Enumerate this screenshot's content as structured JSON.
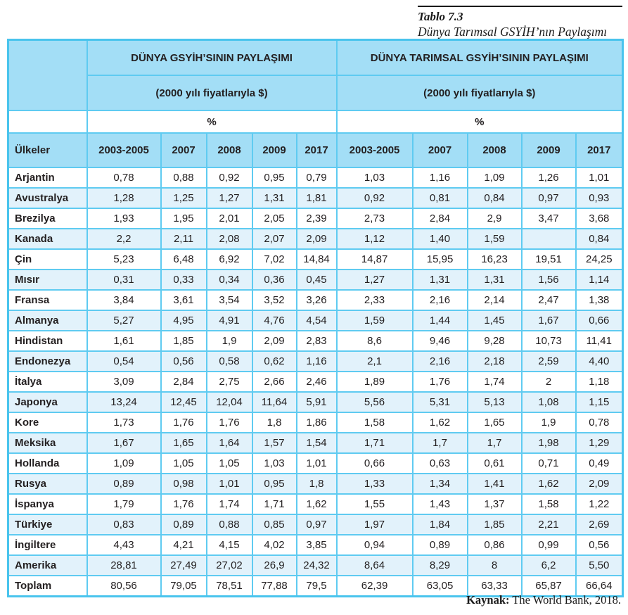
{
  "page": {
    "title": "Tablo 7.3",
    "subtitle": "Dünya Tarımsal GSYİH’nın Paylaşımı",
    "source_label": "Kaynak:",
    "source_text": " The World Bank, 2018."
  },
  "colors": {
    "header_bg": "#A3DEF6",
    "stripe_bg": "#E2F2FB",
    "grid_line": "#5FCBF1",
    "outer_border": "#49C4ED",
    "text": "#231F20"
  },
  "table": {
    "group_left": {
      "title": "DÜNYA GSYİH’SININ PAYLAŞIMI",
      "pricing_note": "(2000 yılı fiyatlarıyla $)",
      "unit": "%"
    },
    "group_right": {
      "title": "DÜNYA TARIMSAL GSYİH’SININ PAYLAŞIMI",
      "pricing_note": "(2000 yılı fiyatlarıyla $)",
      "unit": "%"
    },
    "countries_header": "Ülkeler",
    "years": [
      "2003-2005",
      "2007",
      "2008",
      "2009",
      "2017"
    ],
    "rows": [
      {
        "country": "Arjantin",
        "gdp": [
          "0,78",
          "0,88",
          "0,92",
          "0,95",
          "0,79"
        ],
        "agri": [
          "1,03",
          "1,16",
          "1,09",
          "1,26",
          "1,01"
        ]
      },
      {
        "country": "Avustralya",
        "gdp": [
          "1,28",
          "1,25",
          "1,27",
          "1,31",
          "1,81"
        ],
        "agri": [
          "0,92",
          "0,81",
          "0,84",
          "0,97",
          "0,93"
        ]
      },
      {
        "country": "Brezilya",
        "gdp": [
          "1,93",
          "1,95",
          "2,01",
          "2,05",
          "2,39"
        ],
        "agri": [
          "2,73",
          "2,84",
          "2,9",
          "3,47",
          "3,68"
        ]
      },
      {
        "country": "Kanada",
        "gdp": [
          "2,2",
          "2,11",
          "2,08",
          "2,07",
          "2,09"
        ],
        "agri": [
          "1,12",
          "1,40",
          "1,59",
          "",
          "0,84"
        ]
      },
      {
        "country": "Çin",
        "gdp": [
          "5,23",
          "6,48",
          "6,92",
          "7,02",
          "14,84"
        ],
        "agri": [
          "14,87",
          "15,95",
          "16,23",
          "19,51",
          "24,25"
        ]
      },
      {
        "country": "Mısır",
        "gdp": [
          "0,31",
          "0,33",
          "0,34",
          "0,36",
          "0,45"
        ],
        "agri": [
          "1,27",
          "1,31",
          "1,31",
          "1,56",
          "1,14"
        ]
      },
      {
        "country": "Fransa",
        "gdp": [
          "3,84",
          "3,61",
          "3,54",
          "3,52",
          "3,26"
        ],
        "agri": [
          "2,33",
          "2,16",
          "2,14",
          "2,47",
          "1,38"
        ]
      },
      {
        "country": "Almanya",
        "gdp": [
          "5,27",
          "4,95",
          "4,91",
          "4,76",
          "4,54"
        ],
        "agri": [
          "1,59",
          "1,44",
          "1,45",
          "1,67",
          "0,66"
        ]
      },
      {
        "country": "Hindistan",
        "gdp": [
          "1,61",
          "1,85",
          "1,9",
          "2,09",
          "2,83"
        ],
        "agri": [
          "8,6",
          "9,46",
          "9,28",
          "10,73",
          "11,41"
        ]
      },
      {
        "country": "Endonezya",
        "gdp": [
          "0,54",
          "0,56",
          "0,58",
          "0,62",
          "1,16"
        ],
        "agri": [
          "2,1",
          "2,16",
          "2,18",
          "2,59",
          "4,40"
        ]
      },
      {
        "country": "İtalya",
        "gdp": [
          "3,09",
          "2,84",
          "2,75",
          "2,66",
          "2,46"
        ],
        "agri": [
          "1,89",
          "1,76",
          "1,74",
          "2",
          "1,18"
        ]
      },
      {
        "country": "Japonya",
        "gdp": [
          "13,24",
          "12,45",
          "12,04",
          "11,64",
          "5,91"
        ],
        "agri": [
          "5,56",
          "5,31",
          "5,13",
          "1,08",
          "1,15"
        ]
      },
      {
        "country": "Kore",
        "gdp": [
          "1,73",
          "1,76",
          "1,76",
          "1,8",
          "1,86"
        ],
        "agri": [
          "1,58",
          "1,62",
          "1,65",
          "1,9",
          "0,78"
        ]
      },
      {
        "country": "Meksika",
        "gdp": [
          "1,67",
          "1,65",
          "1,64",
          "1,57",
          "1,54"
        ],
        "agri": [
          "1,71",
          "1,7",
          "1,7",
          "1,98",
          "1,29"
        ]
      },
      {
        "country": "Hollanda",
        "gdp": [
          "1,09",
          "1,05",
          "1,05",
          "1,03",
          "1,01"
        ],
        "agri": [
          "0,66",
          "0,63",
          "0,61",
          "0,71",
          "0,49"
        ]
      },
      {
        "country": "Rusya",
        "gdp": [
          "0,89",
          "0,98",
          "1,01",
          "0,95",
          "1,8"
        ],
        "agri": [
          "1,33",
          "1,34",
          "1,41",
          "1,62",
          "2,09"
        ]
      },
      {
        "country": "İspanya",
        "gdp": [
          "1,79",
          "1,76",
          "1,74",
          "1,71",
          "1,62"
        ],
        "agri": [
          "1,55",
          "1,43",
          "1,37",
          "1,58",
          "1,22"
        ]
      },
      {
        "country": "Türkiye",
        "gdp": [
          "0,83",
          "0,89",
          "0,88",
          "0,85",
          "0,97"
        ],
        "agri": [
          "1,97",
          "1,84",
          "1,85",
          "2,21",
          "2,69"
        ]
      },
      {
        "country": "İngiltere",
        "gdp": [
          "4,43",
          "4,21",
          "4,15",
          "4,02",
          "3,85"
        ],
        "agri": [
          "0,94",
          "0,89",
          "0,86",
          "0,99",
          "0,56"
        ]
      },
      {
        "country": "Amerika",
        "gdp": [
          "28,81",
          "27,49",
          "27,02",
          "26,9",
          "24,32"
        ],
        "agri": [
          "8,64",
          "8,29",
          "8",
          "6,2",
          "5,50"
        ]
      },
      {
        "country": "Toplam",
        "gdp": [
          "80,56",
          "79,05",
          "78,51",
          "77,88",
          "79,5"
        ],
        "agri": [
          "62,39",
          "63,05",
          "63,33",
          "65,87",
          "66,64"
        ]
      }
    ]
  }
}
